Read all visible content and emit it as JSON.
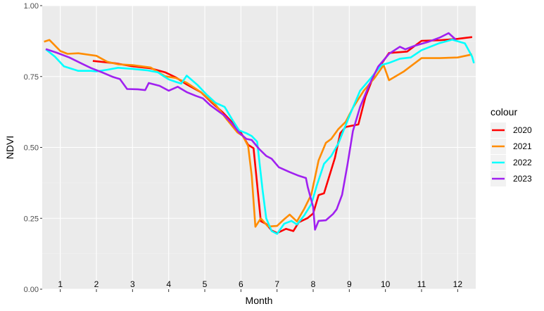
{
  "chart_data": {
    "type": "line",
    "xlabel": "Month",
    "ylabel": "NDVI",
    "xlim": [
      0.5,
      12.5
    ],
    "ylim": [
      0,
      1
    ],
    "yticks": [
      0.0,
      0.25,
      0.5,
      0.75,
      1.0
    ],
    "ytick_labels": [
      "0.00",
      "0.25",
      "0.50",
      "0.75",
      "1.00"
    ],
    "month_labels": [
      "1",
      "2",
      "3",
      "4",
      "5",
      "6",
      "7",
      "8",
      "9",
      "10",
      "11",
      "12"
    ],
    "grid": true,
    "legend": {
      "title": "colour",
      "position": "right"
    },
    "series": [
      {
        "name": "2020",
        "color": "#ff0000",
        "points": [
          [
            1.9,
            0.805
          ],
          [
            2.5,
            0.797
          ],
          [
            3.0,
            0.786
          ],
          [
            3.5,
            0.779
          ],
          [
            3.9,
            0.765
          ],
          [
            4.2,
            0.747
          ],
          [
            4.5,
            0.722
          ],
          [
            4.9,
            0.694
          ],
          [
            5.2,
            0.657
          ],
          [
            5.5,
            0.623
          ],
          [
            5.8,
            0.583
          ],
          [
            6.0,
            0.552
          ],
          [
            6.2,
            0.509
          ],
          [
            6.35,
            0.497
          ],
          [
            6.55,
            0.24
          ],
          [
            6.7,
            0.23
          ],
          [
            6.85,
            0.207
          ],
          [
            7.0,
            0.198
          ],
          [
            7.25,
            0.213
          ],
          [
            7.45,
            0.205
          ],
          [
            7.6,
            0.236
          ],
          [
            7.85,
            0.251
          ],
          [
            8.0,
            0.267
          ],
          [
            8.15,
            0.332
          ],
          [
            8.3,
            0.338
          ],
          [
            8.6,
            0.462
          ],
          [
            8.75,
            0.55
          ],
          [
            8.9,
            0.572
          ],
          [
            9.05,
            0.576
          ],
          [
            9.25,
            0.581
          ],
          [
            9.45,
            0.679
          ],
          [
            9.7,
            0.76
          ],
          [
            10.1,
            0.833
          ],
          [
            10.6,
            0.838
          ],
          [
            11.0,
            0.876
          ],
          [
            11.5,
            0.878
          ],
          [
            12.0,
            0.883
          ],
          [
            12.4,
            0.889
          ]
        ]
      },
      {
        "name": "2021",
        "color": "#ff8c00",
        "points": [
          [
            0.55,
            0.873
          ],
          [
            0.7,
            0.879
          ],
          [
            1.0,
            0.84
          ],
          [
            1.2,
            0.83
          ],
          [
            1.5,
            0.832
          ],
          [
            2.0,
            0.823
          ],
          [
            2.3,
            0.802
          ],
          [
            2.6,
            0.793
          ],
          [
            3.0,
            0.79
          ],
          [
            3.5,
            0.782
          ],
          [
            3.9,
            0.751
          ],
          [
            4.2,
            0.745
          ],
          [
            4.5,
            0.728
          ],
          [
            4.9,
            0.694
          ],
          [
            5.3,
            0.65
          ],
          [
            5.6,
            0.6
          ],
          [
            5.9,
            0.553
          ],
          [
            6.05,
            0.541
          ],
          [
            6.2,
            0.505
          ],
          [
            6.3,
            0.4
          ],
          [
            6.4,
            0.22
          ],
          [
            6.55,
            0.25
          ],
          [
            6.75,
            0.221
          ],
          [
            7.0,
            0.223
          ],
          [
            7.2,
            0.247
          ],
          [
            7.35,
            0.263
          ],
          [
            7.55,
            0.239
          ],
          [
            7.75,
            0.283
          ],
          [
            7.95,
            0.334
          ],
          [
            8.15,
            0.454
          ],
          [
            8.35,
            0.516
          ],
          [
            8.5,
            0.53
          ],
          [
            8.7,
            0.565
          ],
          [
            8.9,
            0.59
          ],
          [
            9.1,
            0.64
          ],
          [
            9.4,
            0.7
          ],
          [
            9.7,
            0.745
          ],
          [
            9.95,
            0.79
          ],
          [
            10.1,
            0.737
          ],
          [
            10.5,
            0.767
          ],
          [
            11.0,
            0.815
          ],
          [
            11.5,
            0.815
          ],
          [
            12.0,
            0.817
          ],
          [
            12.4,
            0.828
          ]
        ]
      },
      {
        "name": "2022",
        "color": "#00ffff",
        "points": [
          [
            0.6,
            0.846
          ],
          [
            0.85,
            0.82
          ],
          [
            1.1,
            0.786
          ],
          [
            1.5,
            0.77
          ],
          [
            1.85,
            0.77
          ],
          [
            2.0,
            0.768
          ],
          [
            2.3,
            0.774
          ],
          [
            2.6,
            0.781
          ],
          [
            3.0,
            0.777
          ],
          [
            3.4,
            0.772
          ],
          [
            3.7,
            0.765
          ],
          [
            3.85,
            0.752
          ],
          [
            4.0,
            0.74
          ],
          [
            4.2,
            0.731
          ],
          [
            4.35,
            0.725
          ],
          [
            4.5,
            0.753
          ],
          [
            4.8,
            0.72
          ],
          [
            5.05,
            0.686
          ],
          [
            5.3,
            0.657
          ],
          [
            5.55,
            0.643
          ],
          [
            5.75,
            0.6
          ],
          [
            5.95,
            0.56
          ],
          [
            6.15,
            0.55
          ],
          [
            6.3,
            0.54
          ],
          [
            6.45,
            0.52
          ],
          [
            6.6,
            0.35
          ],
          [
            6.7,
            0.25
          ],
          [
            6.85,
            0.205
          ],
          [
            7.0,
            0.195
          ],
          [
            7.2,
            0.231
          ],
          [
            7.4,
            0.241
          ],
          [
            7.55,
            0.228
          ],
          [
            7.75,
            0.26
          ],
          [
            7.95,
            0.3
          ],
          [
            8.1,
            0.365
          ],
          [
            8.3,
            0.442
          ],
          [
            8.5,
            0.47
          ],
          [
            8.7,
            0.515
          ],
          [
            9.0,
            0.61
          ],
          [
            9.3,
            0.7
          ],
          [
            9.6,
            0.745
          ],
          [
            9.9,
            0.791
          ],
          [
            10.1,
            0.798
          ],
          [
            10.4,
            0.813
          ],
          [
            10.7,
            0.817
          ],
          [
            11.0,
            0.843
          ],
          [
            11.5,
            0.868
          ],
          [
            11.85,
            0.88
          ],
          [
            12.2,
            0.867
          ],
          [
            12.4,
            0.82
          ],
          [
            12.45,
            0.797
          ]
        ]
      },
      {
        "name": "2023",
        "color": "#a020f0",
        "points": [
          [
            0.6,
            0.847
          ],
          [
            0.9,
            0.834
          ],
          [
            1.25,
            0.817
          ],
          [
            1.6,
            0.795
          ],
          [
            1.85,
            0.78
          ],
          [
            2.15,
            0.765
          ],
          [
            2.45,
            0.749
          ],
          [
            2.65,
            0.741
          ],
          [
            2.85,
            0.706
          ],
          [
            3.15,
            0.705
          ],
          [
            3.35,
            0.702
          ],
          [
            3.45,
            0.727
          ],
          [
            3.75,
            0.717
          ],
          [
            4.0,
            0.7
          ],
          [
            4.25,
            0.714
          ],
          [
            4.5,
            0.695
          ],
          [
            4.75,
            0.682
          ],
          [
            4.95,
            0.673
          ],
          [
            5.15,
            0.649
          ],
          [
            5.35,
            0.63
          ],
          [
            5.55,
            0.612
          ],
          [
            5.75,
            0.584
          ],
          [
            5.95,
            0.552
          ],
          [
            6.15,
            0.53
          ],
          [
            6.3,
            0.526
          ],
          [
            6.5,
            0.495
          ],
          [
            6.7,
            0.47
          ],
          [
            6.85,
            0.46
          ],
          [
            7.05,
            0.43
          ],
          [
            7.35,
            0.413
          ],
          [
            7.6,
            0.4
          ],
          [
            7.8,
            0.392
          ],
          [
            7.85,
            0.36
          ],
          [
            8.0,
            0.29
          ],
          [
            8.05,
            0.21
          ],
          [
            8.15,
            0.241
          ],
          [
            8.35,
            0.243
          ],
          [
            8.55,
            0.265
          ],
          [
            8.65,
            0.282
          ],
          [
            8.8,
            0.333
          ],
          [
            8.95,
            0.44
          ],
          [
            9.1,
            0.558
          ],
          [
            9.3,
            0.643
          ],
          [
            9.55,
            0.72
          ],
          [
            9.8,
            0.785
          ],
          [
            10.1,
            0.83
          ],
          [
            10.4,
            0.855
          ],
          [
            10.55,
            0.846
          ],
          [
            10.8,
            0.858
          ],
          [
            11.2,
            0.873
          ],
          [
            11.5,
            0.887
          ],
          [
            11.75,
            0.903
          ],
          [
            11.95,
            0.88
          ]
        ]
      }
    ]
  }
}
